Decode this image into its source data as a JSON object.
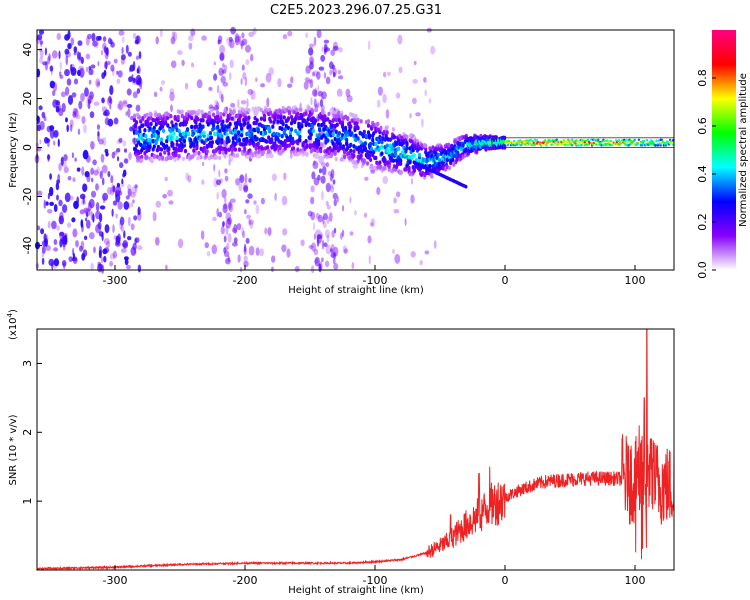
{
  "title": "C2E5.2023.296.07.25.G31",
  "chart_data": [
    {
      "type": "heatmap",
      "xlabel": "Height of straight line (km)",
      "ylabel": "Frequency (Hz)",
      "xlim": [
        -360,
        130
      ],
      "ylim": [
        -50,
        48
      ],
      "xticks": [
        -300,
        -200,
        -100,
        0,
        100
      ],
      "yticks": [
        -40,
        -20,
        0,
        20,
        40
      ],
      "grid": false,
      "colorbar": {
        "label": "Normalized spectral amplitude",
        "range": [
          0,
          1
        ],
        "ticks": [
          "0.0",
          "0.2",
          "0.4",
          "0.6",
          "0.8"
        ],
        "colormap": [
          "#ffffff",
          "#8800ff",
          "#0000ff",
          "#00ffff",
          "#00ff00",
          "#ffff00",
          "#ff0000",
          "#ff0080"
        ]
      },
      "ridge": [
        {
          "x": -280,
          "f": 4,
          "amp": 0.45
        },
        {
          "x": -250,
          "f": 5,
          "amp": 0.45
        },
        {
          "x": -200,
          "f": 6,
          "amp": 0.4
        },
        {
          "x": -150,
          "f": 7,
          "amp": 0.4
        },
        {
          "x": -120,
          "f": 4,
          "amp": 0.4
        },
        {
          "x": -100,
          "f": 1,
          "amp": 0.45
        },
        {
          "x": -75,
          "f": -3,
          "amp": 0.5
        },
        {
          "x": -60,
          "f": -6,
          "amp": 0.5
        },
        {
          "x": -45,
          "f": -4,
          "amp": 0.45
        },
        {
          "x": -30,
          "f": 1,
          "amp": 0.45
        },
        {
          "x": -10,
          "f": 2,
          "amp": 0.6
        },
        {
          "x": 0,
          "f": 2,
          "amp": 0.7
        },
        {
          "x": 20,
          "f": 2,
          "amp": 0.95
        },
        {
          "x": 60,
          "f": 2,
          "amp": 0.95
        },
        {
          "x": 95,
          "f": 2,
          "amp": 0.9
        },
        {
          "x": 110,
          "f": 2,
          "amp": 0.7
        },
        {
          "x": 130,
          "f": 2,
          "amp": 0.75
        }
      ]
    },
    {
      "type": "line",
      "xlabel": "Height of straight line (km)",
      "ylabel": "SNR (10 * v/v)",
      "yscale_label": "(x10",
      "yscale_exp": "4",
      "xlim": [
        -360,
        130
      ],
      "ylim": [
        0,
        3.5
      ],
      "xticks": [
        -300,
        -200,
        -100,
        0,
        100
      ],
      "yticks": [
        1,
        2,
        3
      ],
      "color": "#ee2222",
      "grid": false,
      "envelope": {
        "x": [
          -360,
          -300,
          -250,
          -200,
          -150,
          -120,
          -100,
          -80,
          -60,
          -45,
          -30,
          -20,
          -10,
          0,
          10,
          20,
          30,
          40,
          60,
          80,
          95,
          100,
          105,
          110,
          113,
          120,
          130
        ],
        "y": [
          0.02,
          0.04,
          0.08,
          0.1,
          0.1,
          0.1,
          0.12,
          0.15,
          0.25,
          0.4,
          0.65,
          0.8,
          0.95,
          1.05,
          1.15,
          1.22,
          1.28,
          1.3,
          1.33,
          1.33,
          1.32,
          1.3,
          1.3,
          1.35,
          1.3,
          1.25,
          1.2
        ]
      },
      "spikes": [
        {
          "x": -42,
          "y": 0.8
        },
        {
          "x": -20,
          "y": 1.4
        },
        {
          "x": -12,
          "y": 1.5
        },
        {
          "x": 95,
          "y": 1.8
        },
        {
          "x": 103,
          "y": 2.1
        },
        {
          "x": 107,
          "y": 2.5
        },
        {
          "x": 109,
          "y": 3.5
        },
        {
          "x": 112,
          "y": 1.9
        }
      ]
    }
  ]
}
